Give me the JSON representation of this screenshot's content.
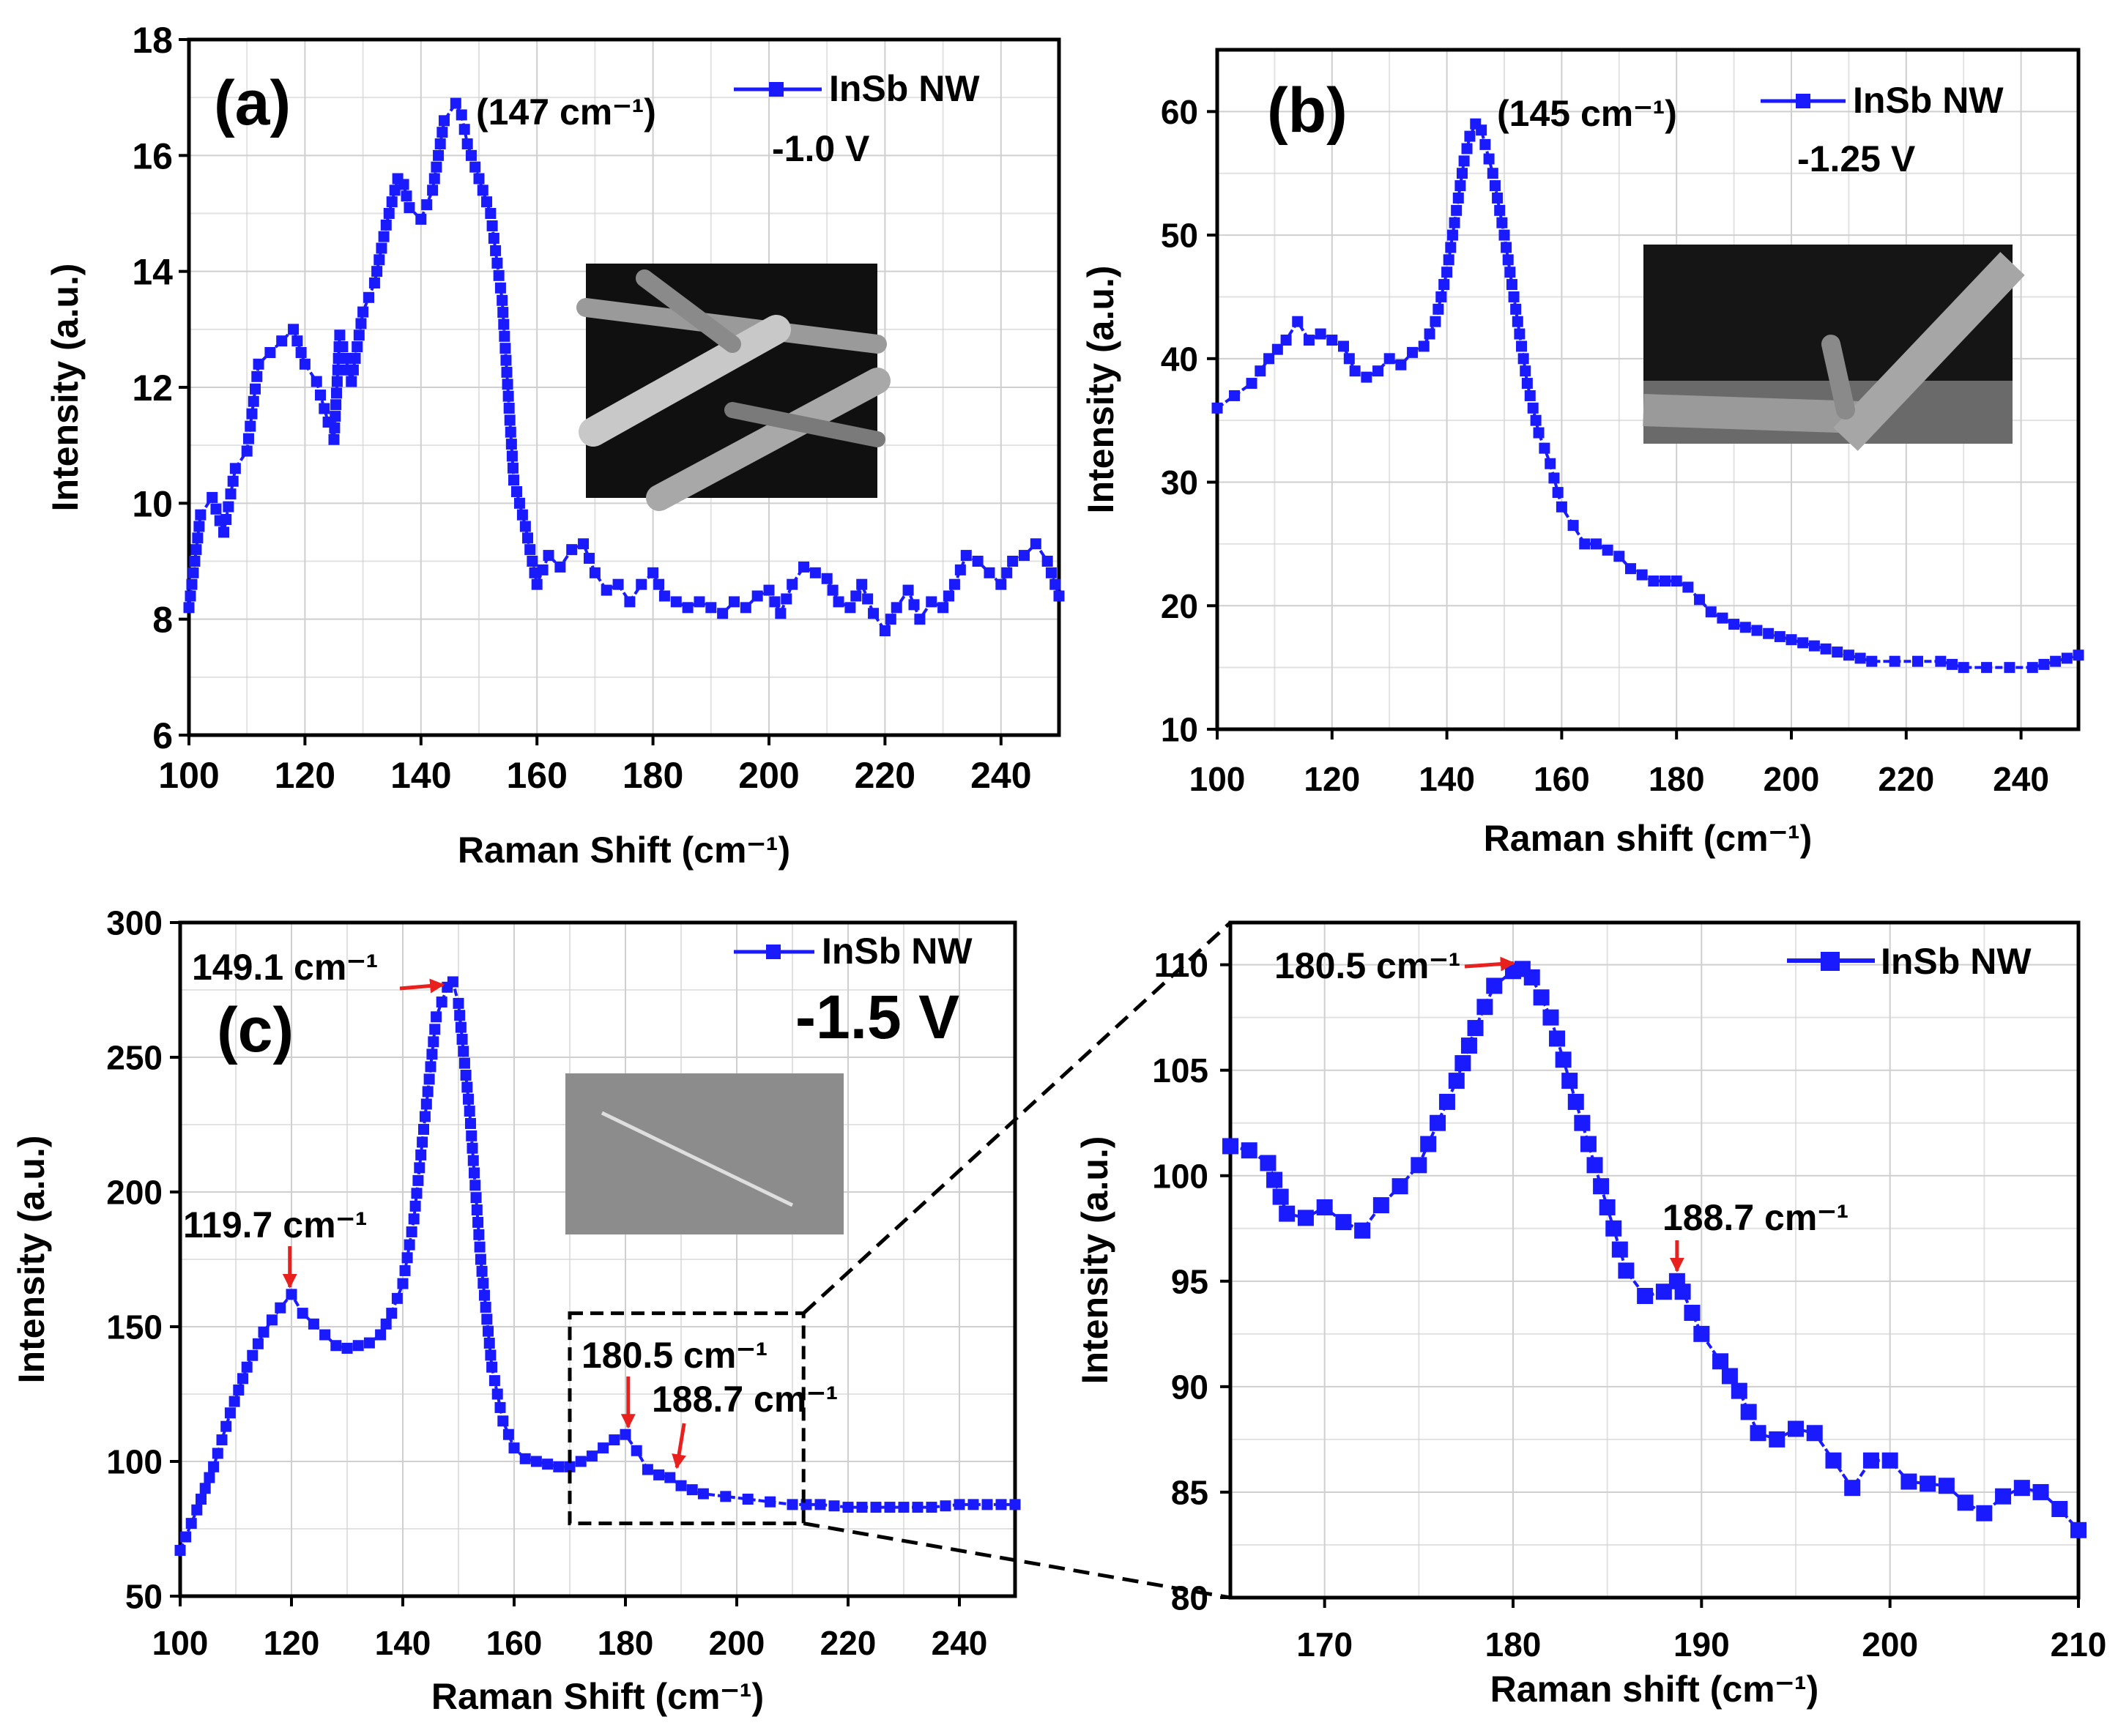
{
  "figure": {
    "background": "#ffffff",
    "series_color": "#1a1aff",
    "arrow_color": "#e8201e",
    "grid_color": "#cfcfcf"
  },
  "chart_data": [
    {
      "id": "a",
      "type": "line",
      "panel_label": "(a)",
      "xlabel": "Raman Shift (cm⁻¹)",
      "ylabel": "Intensity (a.u.)",
      "xlim": [
        100,
        250
      ],
      "ylim": [
        6,
        18
      ],
      "xticks": [
        100,
        120,
        140,
        160,
        180,
        200,
        220,
        240
      ],
      "yticks": [
        6,
        8,
        10,
        12,
        14,
        16,
        18
      ],
      "legend": "InSb NW",
      "voltage": "-1.0 V",
      "peak_label": "(147 cm⁻¹)",
      "inset": "SEM image of InSb nanowires",
      "series": [
        {
          "name": "InSb NW",
          "x": [
            100,
            102,
            104,
            106,
            108,
            110,
            112,
            114,
            116,
            118,
            120,
            122,
            124,
            125,
            126,
            128,
            130,
            132,
            134,
            136,
            137,
            138,
            140,
            142,
            144,
            146,
            147,
            148,
            150,
            152,
            154,
            156,
            158,
            160,
            162,
            164,
            166,
            168,
            170,
            172,
            174,
            176,
            178,
            180,
            182,
            184,
            186,
            188,
            190,
            192,
            194,
            196,
            198,
            200,
            202,
            204,
            206,
            208,
            210,
            212,
            214,
            216,
            218,
            220,
            222,
            224,
            226,
            228,
            230,
            232,
            234,
            236,
            238,
            240,
            242,
            244,
            246,
            248,
            250
          ],
          "y": [
            8.2,
            9.8,
            10.1,
            9.5,
            10.6,
            10.9,
            12.4,
            12.6,
            12.8,
            13.0,
            12.4,
            12.1,
            11.4,
            11.1,
            12.9,
            12.1,
            13.3,
            13.8,
            14.8,
            15.6,
            15.5,
            15.1,
            14.9,
            15.4,
            16.6,
            16.9,
            16.7,
            16.2,
            15.6,
            15.0,
            13.5,
            10.4,
            9.6,
            8.6,
            9.1,
            8.9,
            9.2,
            9.3,
            8.8,
            8.5,
            8.6,
            8.3,
            8.6,
            8.8,
            8.4,
            8.3,
            8.2,
            8.3,
            8.2,
            8.1,
            8.3,
            8.2,
            8.4,
            8.5,
            8.1,
            8.6,
            8.9,
            8.8,
            8.7,
            8.3,
            8.2,
            8.6,
            8.1,
            7.8,
            8.2,
            8.5,
            8.0,
            8.3,
            8.2,
            8.6,
            9.1,
            9.0,
            8.8,
            8.6,
            9.0,
            9.1,
            9.3,
            9.0,
            8.4
          ]
        }
      ]
    },
    {
      "id": "b",
      "type": "line",
      "panel_label": "(b)",
      "xlabel": "Raman shift (cm⁻¹)",
      "ylabel": "Intensity (a.u.)",
      "xlim": [
        100,
        250
      ],
      "ylim": [
        10,
        65
      ],
      "xticks": [
        100,
        120,
        140,
        160,
        180,
        200,
        220,
        240
      ],
      "yticks": [
        10,
        20,
        30,
        40,
        50,
        60
      ],
      "legend": "InSb NW",
      "voltage": "-1.25 V",
      "peak_label": "(145 cm⁻¹)",
      "inset": "SEM image of InSb nanowires",
      "series": [
        {
          "name": "InSb NW",
          "x": [
            100,
            103,
            106,
            109,
            112,
            114,
            116,
            118,
            120,
            122,
            124,
            126,
            128,
            130,
            132,
            134,
            136,
            138,
            140,
            142,
            143,
            144,
            145,
            146,
            148,
            150,
            152,
            154,
            156,
            158,
            160,
            162,
            164,
            166,
            168,
            170,
            172,
            174,
            176,
            178,
            180,
            182,
            184,
            186,
            188,
            190,
            194,
            198,
            202,
            206,
            210,
            214,
            218,
            222,
            226,
            230,
            234,
            238,
            242,
            246,
            250
          ],
          "y": [
            36,
            37,
            38,
            40,
            41.5,
            43,
            41.5,
            42,
            41.5,
            41,
            39,
            38.5,
            39,
            40,
            39.5,
            40.5,
            41,
            43,
            47,
            53,
            56,
            58,
            59,
            58.5,
            55,
            50,
            44,
            38,
            34,
            31.5,
            28,
            26.5,
            25,
            25,
            24.5,
            24,
            23,
            22.5,
            22,
            22,
            22,
            21.5,
            20.5,
            19.5,
            19,
            18.5,
            18,
            17.5,
            17,
            16.5,
            16,
            15.5,
            15.5,
            15.5,
            15.5,
            15,
            15,
            15,
            15,
            15.5,
            16
          ]
        }
      ]
    },
    {
      "id": "c",
      "type": "line",
      "panel_label": "(c)",
      "xlabel": "Raman Shift (cm⁻¹)",
      "ylabel": "Intensity (a.u.)",
      "xlim": [
        100,
        250
      ],
      "ylim": [
        50,
        300
      ],
      "xticks": [
        100,
        120,
        140,
        160,
        180,
        200,
        220,
        240
      ],
      "yticks": [
        50,
        100,
        150,
        200,
        250,
        300
      ],
      "legend": "InSb NW",
      "voltage": "-1.5 V",
      "inset": "SEM image of a single InSb nanowire",
      "annotations": [
        {
          "text": "149.1 cm⁻¹",
          "x": 149.1,
          "y": 278
        },
        {
          "text": "119.7 cm⁻¹",
          "x": 119.7,
          "y": 162
        },
        {
          "text": "180.5 cm⁻¹",
          "x": 180.5,
          "y": 110
        },
        {
          "text": "188.7 cm⁻¹",
          "x": 188.7,
          "y": 95
        }
      ],
      "zoom_box": {
        "x": [
          170,
          212
        ],
        "y": [
          77,
          155
        ]
      },
      "series": [
        {
          "name": "InSb NW",
          "x": [
            100,
            103,
            106,
            109,
            112,
            115,
            118,
            120,
            122,
            124,
            126,
            128,
            130,
            132,
            134,
            136,
            138,
            140,
            142,
            144,
            146,
            148,
            149,
            150,
            152,
            154,
            156,
            158,
            160,
            162,
            164,
            166,
            168,
            170,
            172,
            174,
            176,
            178,
            180,
            182,
            184,
            186,
            188,
            190,
            194,
            198,
            202,
            206,
            210,
            215,
            220,
            225,
            230,
            235,
            240,
            245,
            250
          ],
          "y": [
            67,
            82,
            98,
            118,
            135,
            148,
            157,
            162,
            155,
            151,
            147,
            143,
            142,
            143,
            144,
            147,
            155,
            166,
            190,
            228,
            265,
            276,
            278,
            270,
            230,
            175,
            135,
            115,
            105,
            101,
            100,
            99,
            98,
            98,
            100,
            102,
            105,
            108,
            110,
            104,
            97,
            95,
            94,
            91,
            88,
            87,
            86,
            85,
            84,
            84,
            83,
            83,
            83,
            83,
            84,
            84,
            84
          ]
        }
      ]
    },
    {
      "id": "d",
      "type": "line",
      "panel_label": "",
      "xlabel": "Raman shift (cm⁻¹)",
      "ylabel": "Intensity (a.u.)",
      "xlim": [
        165,
        210
      ],
      "ylim": [
        80,
        112
      ],
      "xticks": [
        170,
        180,
        190,
        200,
        210
      ],
      "yticks": [
        80,
        85,
        90,
        95,
        100,
        105,
        110
      ],
      "legend": "InSb NW",
      "annotations": [
        {
          "text": "180.5 cm⁻¹",
          "x": 180.5,
          "y": 109.8
        },
        {
          "text": "188.7 cm⁻¹",
          "x": 188.7,
          "y": 95
        }
      ],
      "series": [
        {
          "name": "InSb NW",
          "x": [
            165,
            166,
            167,
            168,
            169,
            170,
            171,
            172,
            173,
            174,
            175,
            176,
            177,
            178,
            179,
            180,
            180.5,
            181,
            182,
            183,
            184,
            185,
            186,
            187,
            188,
            188.7,
            189,
            190,
            191,
            192,
            193,
            194,
            195,
            196,
            197,
            198,
            199,
            200,
            201,
            202,
            203,
            204,
            205,
            206,
            207,
            208,
            209,
            210
          ],
          "y": [
            101.4,
            101.2,
            100.6,
            98.2,
            98.0,
            98.5,
            97.8,
            97.4,
            98.6,
            99.5,
            100.5,
            102.5,
            104.5,
            107.0,
            109.0,
            109.7,
            109.8,
            109.4,
            107.5,
            104.5,
            101.5,
            98.5,
            95.5,
            94.3,
            94.5,
            95.0,
            94.5,
            92.5,
            91.2,
            89.8,
            87.8,
            87.5,
            88.0,
            87.8,
            86.5,
            85.2,
            86.5,
            86.5,
            85.5,
            85.4,
            85.3,
            84.5,
            84.0,
            84.8,
            85.2,
            85.0,
            84.2,
            83.2
          ]
        }
      ]
    }
  ]
}
